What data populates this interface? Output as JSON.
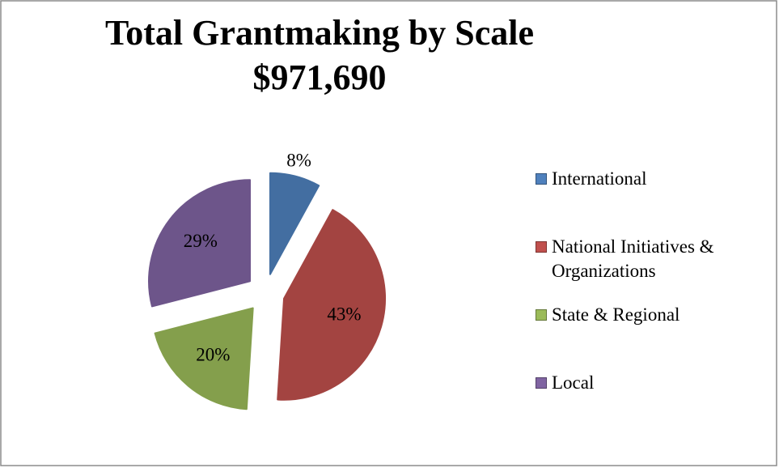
{
  "chart_data": {
    "type": "pie",
    "title": "Total Grantmaking by Scale",
    "subtitle": "$971,690",
    "categories": [
      "International",
      "National Initiatives & Organizations",
      "State & Regional",
      "Local"
    ],
    "values": [
      8,
      43,
      20,
      29
    ],
    "value_labels": [
      "8%",
      "43%",
      "20%",
      "29%"
    ],
    "colors": [
      "#4f81bd",
      "#c0504d",
      "#9bbb59",
      "#8064a2"
    ],
    "legend": "right"
  }
}
